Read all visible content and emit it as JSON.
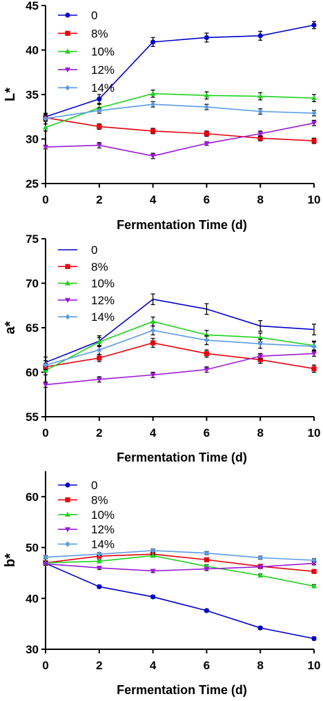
{
  "chart_data": [
    {
      "type": "line",
      "ylabel": "L*",
      "xlabel": "Fermentation Time (d)",
      "x": [
        0,
        2,
        4,
        6,
        8,
        10
      ],
      "xlim": [
        0,
        10
      ],
      "ylim": [
        25,
        45
      ],
      "xticks": [
        "0",
        "2",
        "4",
        "6",
        "8",
        "10"
      ],
      "yticks": [
        "25",
        "30",
        "35",
        "40",
        "45"
      ],
      "legend": "top-left",
      "grid": false,
      "series": [
        {
          "name": "0",
          "color": "#0000cc",
          "marker": "circle",
          "values": [
            32.5,
            34.5,
            40.9,
            41.4,
            41.6,
            42.8
          ],
          "err": [
            0.4,
            0.5,
            0.5,
            0.5,
            0.5,
            0.4
          ]
        },
        {
          "name": "8%",
          "color": "#e8000b",
          "marker": "square",
          "values": [
            32.4,
            31.4,
            30.9,
            30.6,
            30.1,
            29.8
          ],
          "err": [
            0.4,
            0.3,
            0.3,
            0.3,
            0.3,
            0.3
          ]
        },
        {
          "name": "10%",
          "color": "#1ed21e",
          "marker": "triangle-up",
          "values": [
            31.3,
            33.5,
            35.1,
            34.9,
            34.8,
            34.6
          ],
          "err": [
            0.4,
            0.4,
            0.4,
            0.4,
            0.4,
            0.4
          ]
        },
        {
          "name": "12%",
          "color": "#9b19d6",
          "marker": "triangle-down",
          "values": [
            29.1,
            29.3,
            28.1,
            29.5,
            30.6,
            31.8
          ],
          "err": [
            0.2,
            0.3,
            0.3,
            0.2,
            0.3,
            0.3
          ]
        },
        {
          "name": "14%",
          "color": "#5a9be6",
          "marker": "diamond",
          "values": [
            32.3,
            33.2,
            33.9,
            33.6,
            33.1,
            32.9
          ],
          "err": [
            0.3,
            0.3,
            0.3,
            0.3,
            0.3,
            0.3
          ]
        }
      ]
    },
    {
      "type": "line",
      "ylabel": "a*",
      "xlabel": "Fermentation Time (d)",
      "x": [
        0,
        2,
        4,
        6,
        8,
        10
      ],
      "xlim": [
        0,
        10
      ],
      "ylim": [
        55,
        75
      ],
      "xticks": [
        "0",
        "2",
        "4",
        "6",
        "8",
        "10"
      ],
      "yticks": [
        "55",
        "60",
        "65",
        "70",
        "75"
      ],
      "legend": "top-left",
      "grid": false,
      "series": [
        {
          "name": "0",
          "color": "#0000cc",
          "marker": "none",
          "values": [
            61.1,
            63.5,
            68.2,
            67.1,
            65.2,
            64.8
          ],
          "err": [
            0.6,
            0.6,
            0.6,
            0.6,
            0.6,
            0.6
          ]
        },
        {
          "name": "8%",
          "color": "#e8000b",
          "marker": "square",
          "values": [
            60.6,
            61.6,
            63.3,
            62.1,
            61.4,
            60.4
          ],
          "err": [
            0.4,
            0.4,
            0.5,
            0.4,
            0.4,
            0.4
          ]
        },
        {
          "name": "10%",
          "color": "#1ed21e",
          "marker": "triangle-up",
          "values": [
            60.2,
            63.4,
            65.7,
            64.2,
            63.9,
            63.0
          ],
          "err": [
            0.5,
            0.5,
            0.5,
            0.5,
            0.5,
            0.5
          ]
        },
        {
          "name": "12%",
          "color": "#9b19d6",
          "marker": "triangle-down",
          "values": [
            58.6,
            59.2,
            59.7,
            60.3,
            61.8,
            62.1
          ],
          "err": [
            0.3,
            0.3,
            0.3,
            0.3,
            0.3,
            0.3
          ]
        },
        {
          "name": "14%",
          "color": "#5a9be6",
          "marker": "diamond",
          "values": [
            60.8,
            62.5,
            64.7,
            63.6,
            63.2,
            62.9
          ],
          "err": [
            0.5,
            0.5,
            0.5,
            0.5,
            0.5,
            0.5
          ]
        }
      ]
    },
    {
      "type": "line",
      "ylabel": "b*",
      "xlabel": "Fermentation Time (d)",
      "x": [
        0,
        2,
        4,
        6,
        8,
        10
      ],
      "xlim": [
        0,
        10
      ],
      "ylim": [
        30,
        65
      ],
      "xticks": [
        "0",
        "2",
        "4",
        "6",
        "8",
        "10"
      ],
      "yticks": [
        "30",
        "40",
        "50",
        "60"
      ],
      "legend": "top-left",
      "grid": false,
      "series": [
        {
          "name": "0",
          "color": "#0000cc",
          "marker": "circle",
          "values": [
            46.9,
            42.3,
            40.3,
            37.6,
            34.2,
            32.1
          ],
          "err": [
            0.3,
            0.3,
            0.3,
            0.3,
            0.3,
            0.3
          ]
        },
        {
          "name": "8%",
          "color": "#e8000b",
          "marker": "square",
          "values": [
            47.0,
            48.3,
            48.7,
            47.6,
            46.3,
            45.3
          ],
          "err": [
            0.3,
            0.3,
            0.3,
            0.3,
            0.3,
            0.3
          ]
        },
        {
          "name": "10%",
          "color": "#1ed21e",
          "marker": "triangle-up",
          "values": [
            47.0,
            47.3,
            48.4,
            46.3,
            44.5,
            42.4
          ],
          "err": [
            0.3,
            0.3,
            0.3,
            0.3,
            0.3,
            0.3
          ]
        },
        {
          "name": "12%",
          "color": "#9b19d6",
          "marker": "triangle-down",
          "values": [
            46.8,
            46.0,
            45.4,
            45.8,
            46.2,
            46.9
          ],
          "err": [
            0.3,
            0.3,
            0.3,
            0.3,
            0.3,
            0.3
          ]
        },
        {
          "name": "14%",
          "color": "#5a9be6",
          "marker": "diamond",
          "values": [
            48.1,
            48.7,
            49.4,
            48.9,
            48.0,
            47.5
          ],
          "err": [
            0.3,
            0.3,
            0.3,
            0.3,
            0.3,
            0.3
          ]
        }
      ]
    }
  ]
}
